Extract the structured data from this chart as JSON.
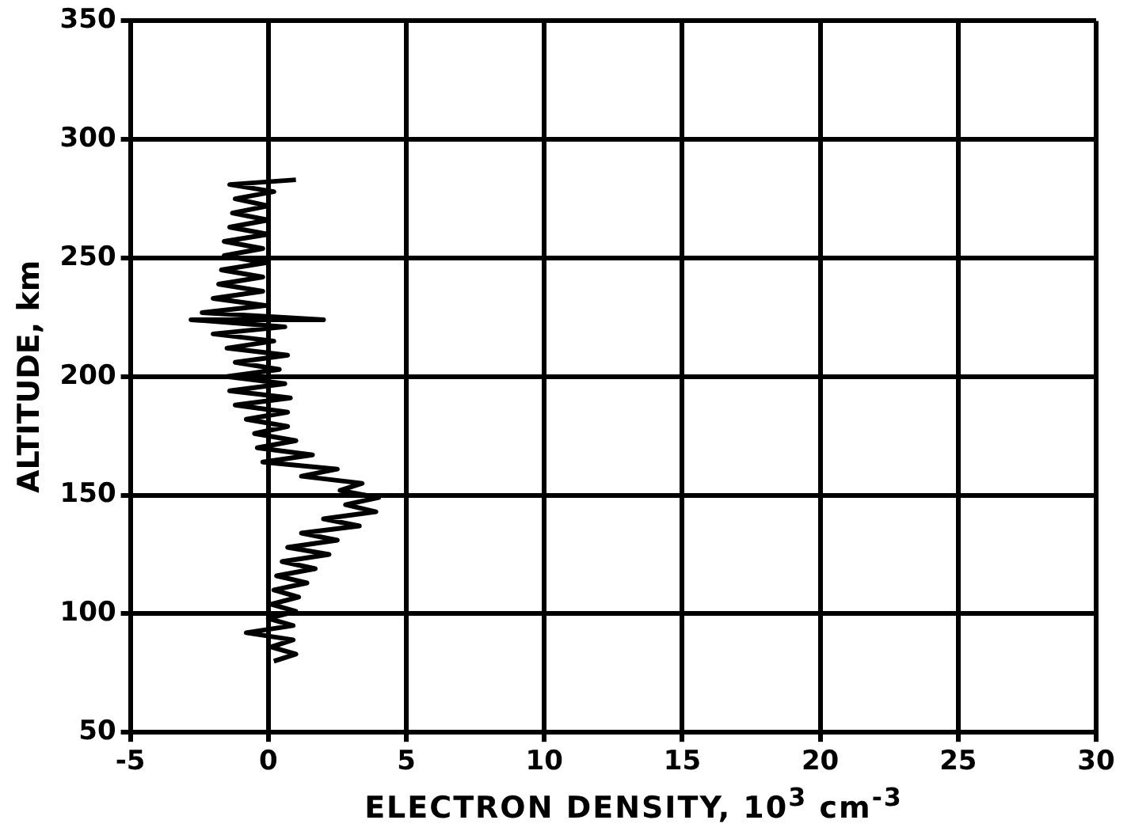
{
  "chart_data": {
    "type": "line",
    "xlabel": "ELECTRON DENSITY, 10$^{3}$ cm$^{-3}$",
    "ylabel": "ALTITUDE, km",
    "xlim": [
      -5,
      30
    ],
    "xticks": [
      -5,
      0,
      5,
      10,
      15,
      20,
      25,
      30
    ],
    "ylim": [
      50,
      350
    ],
    "yticks": [
      50,
      100,
      150,
      200,
      250,
      300,
      350
    ],
    "grid": true,
    "marker": "none",
    "line_style": "solid",
    "series": [
      {
        "color": "#000000",
        "x": [
          0.2,
          1.0,
          0.1,
          0.9,
          -0.8,
          0.9,
          0.0,
          1.0,
          0.1,
          1.1,
          0.2,
          1.4,
          0.3,
          1.7,
          0.5,
          2.2,
          0.7,
          2.5,
          1.2,
          3.3,
          2.0,
          3.9,
          2.8,
          4.0,
          2.6,
          3.4,
          1.2,
          2.5,
          -0.2,
          1.6,
          -0.4,
          1.0,
          -0.5,
          0.7,
          -0.8,
          0.7,
          -1.2,
          0.8,
          -1.4,
          0.6,
          -1.5,
          0.4,
          -1.2,
          0.7,
          -1.5,
          0.2,
          -2.0,
          0.6,
          -2.8,
          2.0,
          -2.4,
          -0.1,
          -2.0,
          -0.2,
          -1.8,
          -0.2,
          -1.7,
          -0.1,
          -1.6,
          -0.2,
          -1.6,
          0.0,
          -1.4,
          0.0,
          -1.3,
          0.0,
          -1.2,
          0.2,
          -1.4,
          1.0
        ],
        "values": [
          80,
          83,
          86,
          89,
          92,
          95,
          98,
          101,
          104,
          107,
          110,
          113,
          116,
          119,
          122,
          125,
          128,
          131,
          134,
          137,
          140,
          143,
          146,
          149,
          152,
          155,
          158,
          161,
          164,
          167,
          170,
          173,
          176,
          179,
          182,
          185,
          188,
          191,
          194,
          197,
          200,
          203,
          206,
          209,
          212,
          215,
          218,
          221,
          224,
          224,
          227,
          230,
          233,
          236,
          239,
          242,
          245,
          248,
          251,
          254,
          257,
          260,
          263,
          266,
          269,
          272,
          275,
          278,
          281,
          283
        ]
      }
    ]
  }
}
